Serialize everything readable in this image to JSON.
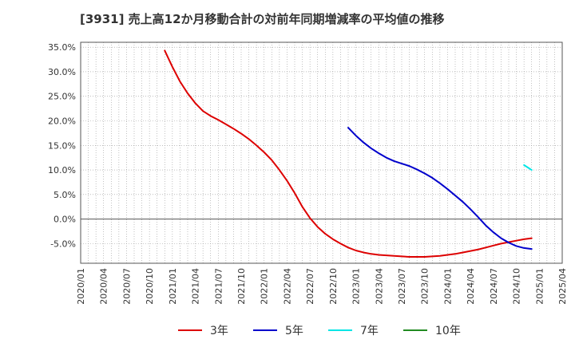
{
  "chart_data": {
    "type": "line",
    "title": "[3931]  売上高12か月移動合計の対前年同期増減率の平均値の推移",
    "xlabel": "",
    "ylabel": "",
    "ylim": [
      -9,
      36
    ],
    "yticks": [
      35,
      30,
      25,
      20,
      15,
      10,
      5,
      0,
      -5
    ],
    "ytick_labels": [
      "35.0%",
      "30.0%",
      "25.0%",
      "20.0%",
      "15.0%",
      "10.0%",
      "5.0%",
      "0.0%",
      "-5.0%"
    ],
    "x_ticks": [
      "2020/01",
      "2020/04",
      "2020/07",
      "2020/10",
      "2021/01",
      "2021/04",
      "2021/07",
      "2021/10",
      "2022/01",
      "2022/04",
      "2022/07",
      "2022/10",
      "2023/01",
      "2023/04",
      "2023/07",
      "2023/10",
      "2024/01",
      "2024/04",
      "2024/07",
      "2024/10",
      "2025/01",
      "2025/04"
    ],
    "grid": true,
    "legend_position": "bottom",
    "series": [
      {
        "name": "3年",
        "color": "#dd0000",
        "points": [
          [
            "2020/12",
            34.3
          ],
          [
            "2021/01",
            31.0
          ],
          [
            "2021/02",
            28.0
          ],
          [
            "2021/03",
            25.6
          ],
          [
            "2021/04",
            23.6
          ],
          [
            "2021/05",
            22.0
          ],
          [
            "2021/06",
            21.0
          ],
          [
            "2021/07",
            20.2
          ],
          [
            "2021/08",
            19.3
          ],
          [
            "2021/09",
            18.4
          ],
          [
            "2021/10",
            17.4
          ],
          [
            "2021/11",
            16.3
          ],
          [
            "2021/12",
            15.0
          ],
          [
            "2022/01",
            13.6
          ],
          [
            "2022/02",
            12.0
          ],
          [
            "2022/03",
            10.0
          ],
          [
            "2022/04",
            7.8
          ],
          [
            "2022/05",
            5.3
          ],
          [
            "2022/06",
            2.5
          ],
          [
            "2022/07",
            0.2
          ],
          [
            "2022/08",
            -1.6
          ],
          [
            "2022/09",
            -3.0
          ],
          [
            "2022/10",
            -4.1
          ],
          [
            "2022/11",
            -5.0
          ],
          [
            "2022/12",
            -5.8
          ],
          [
            "2023/01",
            -6.4
          ],
          [
            "2023/02",
            -6.8
          ],
          [
            "2023/03",
            -7.1
          ],
          [
            "2023/04",
            -7.3
          ],
          [
            "2023/05",
            -7.4
          ],
          [
            "2023/06",
            -7.5
          ],
          [
            "2023/07",
            -7.6
          ],
          [
            "2023/08",
            -7.7
          ],
          [
            "2023/09",
            -7.7
          ],
          [
            "2023/10",
            -7.7
          ],
          [
            "2023/11",
            -7.6
          ],
          [
            "2023/12",
            -7.5
          ],
          [
            "2024/01",
            -7.3
          ],
          [
            "2024/02",
            -7.1
          ],
          [
            "2024/03",
            -6.8
          ],
          [
            "2024/04",
            -6.5
          ],
          [
            "2024/05",
            -6.2
          ],
          [
            "2024/06",
            -5.8
          ],
          [
            "2024/07",
            -5.4
          ],
          [
            "2024/08",
            -5.0
          ],
          [
            "2024/09",
            -4.7
          ],
          [
            "2024/10",
            -4.4
          ],
          [
            "2024/11",
            -4.1
          ],
          [
            "2024/12",
            -3.9
          ]
        ]
      },
      {
        "name": "5年",
        "color": "#0000cc",
        "points": [
          [
            "2022/12",
            18.6
          ],
          [
            "2023/01",
            17.0
          ],
          [
            "2023/02",
            15.6
          ],
          [
            "2023/03",
            14.4
          ],
          [
            "2023/04",
            13.4
          ],
          [
            "2023/05",
            12.5
          ],
          [
            "2023/06",
            11.8
          ],
          [
            "2023/07",
            11.3
          ],
          [
            "2023/08",
            10.8
          ],
          [
            "2023/09",
            10.1
          ],
          [
            "2023/10",
            9.3
          ],
          [
            "2023/11",
            8.4
          ],
          [
            "2023/12",
            7.3
          ],
          [
            "2024/01",
            6.1
          ],
          [
            "2024/02",
            4.8
          ],
          [
            "2024/03",
            3.5
          ],
          [
            "2024/04",
            2.0
          ],
          [
            "2024/05",
            0.4
          ],
          [
            "2024/06",
            -1.3
          ],
          [
            "2024/07",
            -2.7
          ],
          [
            "2024/08",
            -3.9
          ],
          [
            "2024/09",
            -4.8
          ],
          [
            "2024/10",
            -5.5
          ],
          [
            "2024/11",
            -5.9
          ],
          [
            "2024/12",
            -6.1
          ]
        ]
      },
      {
        "name": "7年",
        "color": "#00e5e5",
        "points": [
          [
            "2024/11",
            11.0
          ],
          [
            "2024/12",
            10.0
          ]
        ]
      },
      {
        "name": "10年",
        "color": "#228b22",
        "points": []
      }
    ]
  }
}
